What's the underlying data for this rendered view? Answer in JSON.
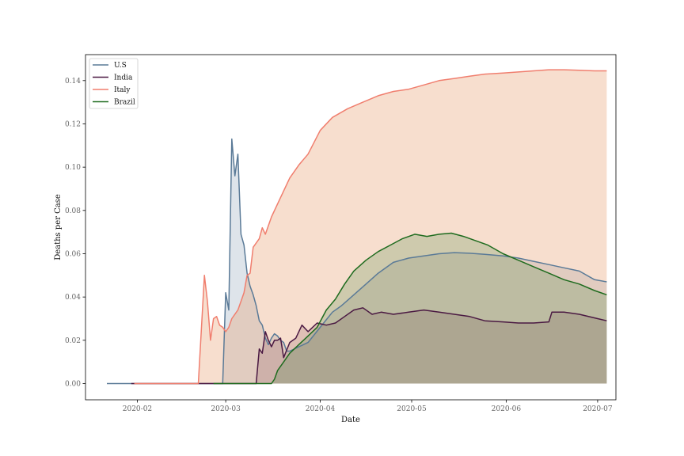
{
  "chart_data": {
    "type": "area",
    "title": "",
    "xlabel": "Date",
    "ylabel": "Deaths per Case",
    "xlim": [
      "2020-01-15",
      "2020-07-07"
    ],
    "ylim": [
      -0.0075,
      0.152
    ],
    "grid": false,
    "legend_position": "top-left",
    "x_ticks": [
      "2020-02",
      "2020-03",
      "2020-04",
      "2020-05",
      "2020-06",
      "2020-07"
    ],
    "y_ticks": [
      "0.00",
      "0.02",
      "0.04",
      "0.06",
      "0.08",
      "0.10",
      "0.12",
      "0.14"
    ],
    "series": [
      {
        "name": "U.S",
        "line_color": "#5a7a97",
        "fill_color": "#5a7a97",
        "fill_opacity": 0.2,
        "points": [
          [
            "2020-01-22",
            0
          ],
          [
            "2020-02-29",
            0
          ],
          [
            "2020-03-01",
            0.042
          ],
          [
            "2020-03-02",
            0.034
          ],
          [
            "2020-03-03",
            0.113
          ],
          [
            "2020-03-04",
            0.096
          ],
          [
            "2020-03-05",
            0.106
          ],
          [
            "2020-03-06",
            0.069
          ],
          [
            "2020-03-07",
            0.064
          ],
          [
            "2020-03-08",
            0.051
          ],
          [
            "2020-03-09",
            0.045
          ],
          [
            "2020-03-10",
            0.041
          ],
          [
            "2020-03-11",
            0.036
          ],
          [
            "2020-03-12",
            0.029
          ],
          [
            "2020-03-13",
            0.027
          ],
          [
            "2020-03-14",
            0.021
          ],
          [
            "2020-03-15",
            0.018
          ],
          [
            "2020-03-16",
            0.021
          ],
          [
            "2020-03-17",
            0.023
          ],
          [
            "2020-03-18",
            0.022
          ],
          [
            "2020-03-19",
            0.02
          ],
          [
            "2020-03-20",
            0.019
          ],
          [
            "2020-03-21",
            0.015
          ],
          [
            "2020-03-22",
            0.015
          ],
          [
            "2020-03-25",
            0.017
          ],
          [
            "2020-03-28",
            0.019
          ],
          [
            "2020-04-01",
            0.026
          ],
          [
            "2020-04-05",
            0.033
          ],
          [
            "2020-04-08",
            0.036
          ],
          [
            "2020-04-12",
            0.041
          ],
          [
            "2020-04-16",
            0.046
          ],
          [
            "2020-04-20",
            0.051
          ],
          [
            "2020-04-25",
            0.056
          ],
          [
            "2020-04-30",
            0.058
          ],
          [
            "2020-05-05",
            0.059
          ],
          [
            "2020-05-10",
            0.06
          ],
          [
            "2020-05-15",
            0.0605
          ],
          [
            "2020-05-20",
            0.0602
          ],
          [
            "2020-05-25",
            0.0597
          ],
          [
            "2020-05-31",
            0.059
          ],
          [
            "2020-06-05",
            0.058
          ],
          [
            "2020-06-10",
            0.0565
          ],
          [
            "2020-06-15",
            0.055
          ],
          [
            "2020-06-20",
            0.0535
          ],
          [
            "2020-06-25",
            0.052
          ],
          [
            "2020-06-30",
            0.048
          ],
          [
            "2020-07-04",
            0.047
          ]
        ]
      },
      {
        "name": "India",
        "line_color": "#4a1942",
        "fill_color": "#4a1942",
        "fill_opacity": 0.2,
        "points": [
          [
            "2020-01-30",
            0
          ],
          [
            "2020-03-11",
            0
          ],
          [
            "2020-03-12",
            0.016
          ],
          [
            "2020-03-13",
            0.014
          ],
          [
            "2020-03-14",
            0.024
          ],
          [
            "2020-03-15",
            0.02
          ],
          [
            "2020-03-16",
            0.017
          ],
          [
            "2020-03-17",
            0.02
          ],
          [
            "2020-03-18",
            0.02
          ],
          [
            "2020-03-19",
            0.021
          ],
          [
            "2020-03-20",
            0.012
          ],
          [
            "2020-03-22",
            0.019
          ],
          [
            "2020-03-24",
            0.021
          ],
          [
            "2020-03-26",
            0.027
          ],
          [
            "2020-03-28",
            0.024
          ],
          [
            "2020-03-31",
            0.028
          ],
          [
            "2020-04-03",
            0.027
          ],
          [
            "2020-04-06",
            0.028
          ],
          [
            "2020-04-09",
            0.031
          ],
          [
            "2020-04-12",
            0.034
          ],
          [
            "2020-04-15",
            0.035
          ],
          [
            "2020-04-18",
            0.032
          ],
          [
            "2020-04-21",
            0.033
          ],
          [
            "2020-04-25",
            0.032
          ],
          [
            "2020-04-30",
            0.033
          ],
          [
            "2020-05-05",
            0.034
          ],
          [
            "2020-05-10",
            0.033
          ],
          [
            "2020-05-15",
            0.032
          ],
          [
            "2020-05-20",
            0.031
          ],
          [
            "2020-05-25",
            0.029
          ],
          [
            "2020-05-31",
            0.0285
          ],
          [
            "2020-06-05",
            0.028
          ],
          [
            "2020-06-10",
            0.028
          ],
          [
            "2020-06-15",
            0.0285
          ],
          [
            "2020-06-16",
            0.033
          ],
          [
            "2020-06-20",
            0.033
          ],
          [
            "2020-06-25",
            0.032
          ],
          [
            "2020-07-01",
            0.03
          ],
          [
            "2020-07-04",
            0.029
          ]
        ]
      },
      {
        "name": "Italy",
        "line_color": "#f07e6e",
        "fill_color": "#e8a074",
        "fill_opacity": 0.35,
        "points": [
          [
            "2020-01-31",
            0
          ],
          [
            "2020-02-21",
            0
          ],
          [
            "2020-02-23",
            0.05
          ],
          [
            "2020-02-24",
            0.038
          ],
          [
            "2020-02-25",
            0.02
          ],
          [
            "2020-02-26",
            0.03
          ],
          [
            "2020-02-27",
            0.031
          ],
          [
            "2020-02-28",
            0.027
          ],
          [
            "2020-02-29",
            0.026
          ],
          [
            "2020-03-01",
            0.024
          ],
          [
            "2020-03-02",
            0.026
          ],
          [
            "2020-03-03",
            0.03
          ],
          [
            "2020-03-05",
            0.034
          ],
          [
            "2020-03-06",
            0.038
          ],
          [
            "2020-03-07",
            0.042
          ],
          [
            "2020-03-08",
            0.05
          ],
          [
            "2020-03-09",
            0.051
          ],
          [
            "2020-03-10",
            0.063
          ],
          [
            "2020-03-12",
            0.067
          ],
          [
            "2020-03-13",
            0.072
          ],
          [
            "2020-03-14",
            0.069
          ],
          [
            "2020-03-16",
            0.077
          ],
          [
            "2020-03-18",
            0.083
          ],
          [
            "2020-03-20",
            0.089
          ],
          [
            "2020-03-22",
            0.095
          ],
          [
            "2020-03-25",
            0.101
          ],
          [
            "2020-03-28",
            0.106
          ],
          [
            "2020-04-01",
            0.117
          ],
          [
            "2020-04-05",
            0.123
          ],
          [
            "2020-04-10",
            0.127
          ],
          [
            "2020-04-15",
            0.13
          ],
          [
            "2020-04-20",
            0.133
          ],
          [
            "2020-04-25",
            0.135
          ],
          [
            "2020-04-30",
            0.136
          ],
          [
            "2020-05-05",
            0.138
          ],
          [
            "2020-05-10",
            0.14
          ],
          [
            "2020-05-15",
            0.141
          ],
          [
            "2020-05-20",
            0.142
          ],
          [
            "2020-05-25",
            0.143
          ],
          [
            "2020-05-31",
            0.1435
          ],
          [
            "2020-06-05",
            0.144
          ],
          [
            "2020-06-10",
            0.1445
          ],
          [
            "2020-06-15",
            0.145
          ],
          [
            "2020-06-20",
            0.145
          ],
          [
            "2020-06-25",
            0.1448
          ],
          [
            "2020-06-30",
            0.1445
          ],
          [
            "2020-07-04",
            0.1445
          ]
        ]
      },
      {
        "name": "Brazil",
        "line_color": "#1e6b1e",
        "fill_color": "#2e7d2e",
        "fill_opacity": 0.2,
        "points": [
          [
            "2020-02-26",
            0
          ],
          [
            "2020-03-16",
            0
          ],
          [
            "2020-03-17",
            0.002
          ],
          [
            "2020-03-18",
            0.006
          ],
          [
            "2020-03-20",
            0.01
          ],
          [
            "2020-03-22",
            0.014
          ],
          [
            "2020-03-25",
            0.018
          ],
          [
            "2020-03-28",
            0.022
          ],
          [
            "2020-03-31",
            0.026
          ],
          [
            "2020-04-03",
            0.034
          ],
          [
            "2020-04-06",
            0.039
          ],
          [
            "2020-04-09",
            0.046
          ],
          [
            "2020-04-12",
            0.052
          ],
          [
            "2020-04-16",
            0.057
          ],
          [
            "2020-04-20",
            0.061
          ],
          [
            "2020-04-24",
            0.064
          ],
          [
            "2020-04-28",
            0.067
          ],
          [
            "2020-05-02",
            0.069
          ],
          [
            "2020-05-06",
            0.068
          ],
          [
            "2020-05-10",
            0.069
          ],
          [
            "2020-05-14",
            0.0695
          ],
          [
            "2020-05-18",
            0.068
          ],
          [
            "2020-05-22",
            0.066
          ],
          [
            "2020-05-26",
            0.064
          ],
          [
            "2020-05-31",
            0.06
          ],
          [
            "2020-06-05",
            0.057
          ],
          [
            "2020-06-10",
            0.054
          ],
          [
            "2020-06-15",
            0.051
          ],
          [
            "2020-06-20",
            0.048
          ],
          [
            "2020-06-25",
            0.046
          ],
          [
            "2020-06-30",
            0.043
          ],
          [
            "2020-07-04",
            0.041
          ]
        ]
      }
    ]
  }
}
